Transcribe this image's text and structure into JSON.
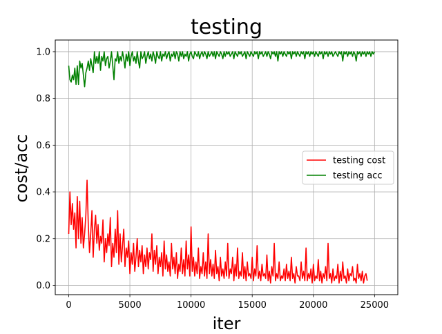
{
  "chart_data": {
    "type": "line",
    "title": "testing",
    "xlabel": "iter",
    "ylabel": "cost/acc",
    "xlim": [
      -1100,
      26900
    ],
    "ylim": [
      -0.04,
      1.05
    ],
    "xticks": [
      0,
      5000,
      10000,
      15000,
      20000,
      25000
    ],
    "yticks": [
      0.0,
      0.2,
      0.4,
      0.6,
      0.8,
      1.0
    ],
    "xtick_labels": [
      "0",
      "5000",
      "10000",
      "15000",
      "20000",
      "25000"
    ],
    "ytick_labels": [
      "0.0",
      "0.2",
      "0.4",
      "0.6",
      "0.8",
      "1.0"
    ],
    "grid": true,
    "legend_position": "center-right",
    "colors": {
      "testing cost": "#ff0000",
      "testing acc": "#008000"
    },
    "x_start": 0,
    "x_step": 100,
    "series": [
      {
        "name": "testing cost",
        "values": [
          0.22,
          0.4,
          0.26,
          0.35,
          0.24,
          0.31,
          0.16,
          0.38,
          0.2,
          0.36,
          0.18,
          0.29,
          0.16,
          0.22,
          0.3,
          0.45,
          0.26,
          0.14,
          0.22,
          0.32,
          0.12,
          0.24,
          0.3,
          0.18,
          0.26,
          0.15,
          0.21,
          0.18,
          0.28,
          0.1,
          0.2,
          0.14,
          0.22,
          0.17,
          0.29,
          0.08,
          0.18,
          0.12,
          0.24,
          0.14,
          0.32,
          0.09,
          0.22,
          0.1,
          0.17,
          0.24,
          0.08,
          0.16,
          0.12,
          0.19,
          0.05,
          0.14,
          0.09,
          0.18,
          0.06,
          0.12,
          0.2,
          0.08,
          0.15,
          0.1,
          0.17,
          0.05,
          0.13,
          0.08,
          0.16,
          0.07,
          0.14,
          0.11,
          0.22,
          0.06,
          0.15,
          0.09,
          0.17,
          0.05,
          0.12,
          0.08,
          0.14,
          0.04,
          0.19,
          0.07,
          0.13,
          0.06,
          0.1,
          0.04,
          0.18,
          0.07,
          0.12,
          0.05,
          0.14,
          0.03,
          0.09,
          0.06,
          0.16,
          0.05,
          0.11,
          0.04,
          0.19,
          0.07,
          0.13,
          0.04,
          0.25,
          0.06,
          0.12,
          0.04,
          0.1,
          0.05,
          0.16,
          0.03,
          0.08,
          0.05,
          0.14,
          0.04,
          0.1,
          0.03,
          0.22,
          0.05,
          0.11,
          0.04,
          0.09,
          0.03,
          0.15,
          0.05,
          0.08,
          0.02,
          0.12,
          0.04,
          0.07,
          0.03,
          0.1,
          0.04,
          0.18,
          0.03,
          0.07,
          0.05,
          0.12,
          0.02,
          0.09,
          0.04,
          0.16,
          0.03,
          0.06,
          0.04,
          0.14,
          0.03,
          0.08,
          0.02,
          0.1,
          0.04,
          0.05,
          0.03,
          0.12,
          0.02,
          0.07,
          0.04,
          0.17,
          0.03,
          0.06,
          0.02,
          0.09,
          0.04,
          0.05,
          0.03,
          0.13,
          0.02,
          0.06,
          0.01,
          0.08,
          0.04,
          0.18,
          0.02,
          0.05,
          0.03,
          0.1,
          0.02,
          0.04,
          0.03,
          0.07,
          0.02,
          0.09,
          0.03,
          0.06,
          0.02,
          0.12,
          0.03,
          0.05,
          0.01,
          0.08,
          0.04,
          0.04,
          0.02,
          0.1,
          0.03,
          0.06,
          0.02,
          0.16,
          0.02,
          0.05,
          0.03,
          0.07,
          0.01,
          0.09,
          0.02,
          0.04,
          0.03,
          0.11,
          0.02,
          0.06,
          0.01,
          0.05,
          0.03,
          0.08,
          0.02,
          0.18,
          0.03,
          0.05,
          0.01,
          0.07,
          0.02,
          0.04,
          0.03,
          0.09,
          0.01,
          0.06,
          0.02,
          0.1,
          0.03,
          0.04,
          0.01,
          0.07,
          0.02,
          0.05,
          0.04,
          0.08,
          0.02,
          0.03,
          0.01,
          0.09,
          0.03,
          0.05,
          0.02,
          0.06,
          0.01,
          0.04,
          0.05,
          0.02
        ]
      },
      {
        "name": "testing acc",
        "values": [
          0.94,
          0.88,
          0.87,
          0.9,
          0.88,
          0.93,
          0.86,
          0.94,
          0.86,
          0.96,
          0.93,
          0.95,
          0.9,
          0.85,
          0.91,
          0.93,
          0.96,
          0.92,
          0.97,
          0.94,
          0.91,
          1.0,
          0.95,
          0.98,
          0.95,
          1.0,
          0.92,
          0.98,
          0.96,
          1.0,
          0.94,
          0.97,
          0.98,
          0.93,
          0.96,
          1.0,
          0.94,
          0.88,
          0.97,
          0.96,
          1.0,
          0.95,
          0.98,
          0.96,
          1.0,
          0.97,
          0.93,
          0.99,
          0.96,
          1.0,
          0.94,
          0.98,
          1.0,
          0.96,
          0.98,
          0.95,
          1.0,
          0.96,
          0.93,
          1.0,
          0.97,
          0.98,
          1.0,
          0.95,
          0.98,
          1.0,
          0.97,
          0.99,
          0.96,
          1.0,
          0.98,
          0.95,
          1.0,
          0.98,
          0.97,
          1.0,
          0.96,
          0.99,
          0.98,
          1.0,
          0.97,
          0.99,
          1.0,
          0.96,
          0.99,
          0.98,
          1.0,
          0.97,
          1.0,
          0.99,
          0.96,
          1.0,
          0.98,
          1.0,
          0.97,
          0.99,
          0.98,
          1.0,
          0.96,
          0.99,
          1.0,
          0.98,
          0.97,
          1.0,
          0.99,
          0.98,
          1.0,
          0.97,
          0.99,
          1.0,
          0.98,
          1.0,
          0.99,
          0.97,
          1.0,
          0.98,
          0.99,
          1.0,
          0.98,
          1.0,
          0.97,
          1.0,
          0.99,
          0.98,
          1.0,
          0.99,
          0.97,
          1.0,
          0.98,
          1.0,
          0.99,
          1.0,
          0.98,
          0.99,
          1.0,
          0.97,
          1.0,
          0.99,
          0.98,
          1.0,
          0.99,
          1.0,
          0.98,
          0.99,
          1.0,
          0.97,
          1.0,
          0.99,
          0.98,
          1.0,
          0.99,
          0.98,
          1.0,
          0.99,
          1.0,
          0.97,
          1.0,
          0.99,
          1.0,
          0.98,
          0.99,
          1.0,
          0.98,
          1.0,
          0.99,
          0.97,
          1.0,
          0.99,
          1.0,
          0.98,
          1.0,
          0.96,
          1.0,
          0.99,
          1.0,
          0.98,
          1.0,
          0.99,
          0.98,
          1.0,
          0.99,
          1.0,
          0.97,
          1.0,
          0.99,
          1.0,
          0.98,
          1.0,
          0.99,
          0.98,
          1.0,
          0.99,
          1.0,
          0.97,
          1.0,
          0.99,
          1.0,
          0.98,
          1.0,
          0.99,
          1.0,
          0.98,
          1.0,
          0.99,
          0.98,
          1.0,
          0.99,
          1.0,
          0.97,
          1.0,
          0.99,
          1.0,
          0.98,
          1.0,
          0.99,
          1.0,
          0.98,
          0.99,
          1.0,
          0.99,
          0.98,
          1.0,
          0.99,
          1.0,
          0.96,
          1.0,
          0.99,
          1.0,
          0.98,
          1.0,
          0.99,
          1.0,
          0.98,
          1.0,
          0.99,
          0.96,
          1.0,
          0.99,
          1.0,
          0.98,
          1.0,
          0.99,
          1.0,
          0.98,
          1.0,
          0.99,
          1.0,
          0.98,
          1.0,
          0.99,
          1.0
        ]
      }
    ]
  }
}
